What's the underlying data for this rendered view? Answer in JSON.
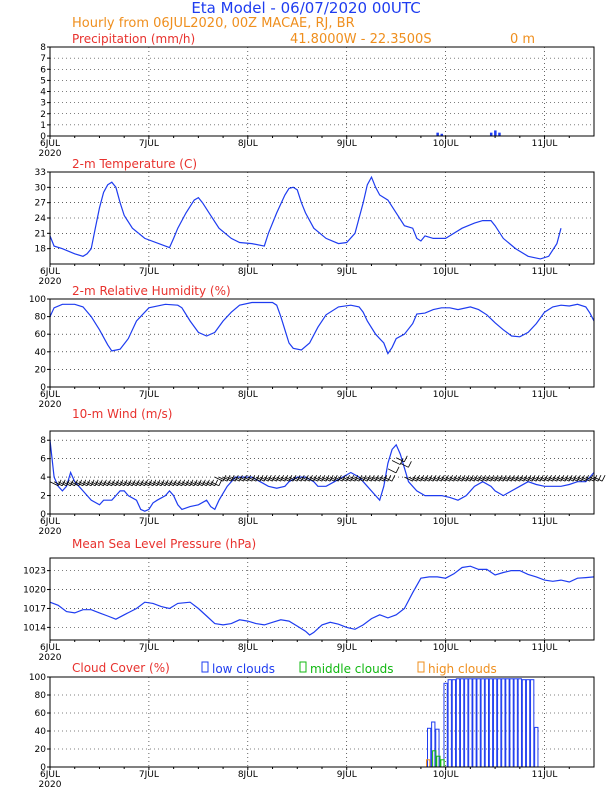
{
  "header": {
    "title": "Eta Model - 06/07/2020 00UTC",
    "subtitle": "Hourly from 06JUL2020, 00Z   MACAE, RJ, BR",
    "coords": "41.8000W - 22.3500S",
    "elevation": "0   m"
  },
  "x_axis": {
    "labels": [
      "6JUL",
      "7JUL",
      "8JUL",
      "9JUL",
      "10JUL",
      "11JUL"
    ],
    "year": "2020",
    "hours_total": 132
  },
  "colors": {
    "title": "#e8322e",
    "header": "#1e3cf0",
    "orange": "#ef8f1e",
    "line": "#1e3cf0",
    "low": "#1e3cf0",
    "middle": "#12b812",
    "high": "#ef8f1e"
  },
  "chart_data": [
    {
      "type": "bar",
      "title": "Precipitation (mm/h)",
      "ylim": [
        0,
        8
      ],
      "yticks": [
        "0",
        "1",
        "2",
        "3",
        "4",
        "5",
        "6",
        "7",
        "8"
      ],
      "bars": [
        [
          94,
          0.3
        ],
        [
          95,
          0.2
        ],
        [
          107,
          0.3
        ],
        [
          108,
          0.5
        ],
        [
          109,
          0.3
        ]
      ]
    },
    {
      "type": "line",
      "title": "2-m Temperature (C)",
      "ylim": [
        15,
        33
      ],
      "yticks": [
        "18",
        "21",
        "24",
        "27",
        "30",
        "33"
      ],
      "points": [
        [
          0,
          20.5
        ],
        [
          1,
          18.5
        ],
        [
          3,
          18
        ],
        [
          6,
          17
        ],
        [
          8,
          16.5
        ],
        [
          9,
          17
        ],
        [
          10,
          18
        ],
        [
          11,
          22
        ],
        [
          12,
          26
        ],
        [
          13,
          29
        ],
        [
          14,
          30.5
        ],
        [
          15,
          31
        ],
        [
          16,
          30
        ],
        [
          17,
          27
        ],
        [
          18,
          24.5
        ],
        [
          20,
          22
        ],
        [
          23,
          20
        ],
        [
          28,
          18.5
        ],
        [
          29,
          18.2
        ],
        [
          30,
          20
        ],
        [
          31,
          22
        ],
        [
          33,
          25
        ],
        [
          35,
          27.5
        ],
        [
          36,
          28
        ],
        [
          37,
          27
        ],
        [
          39,
          24.5
        ],
        [
          41,
          22
        ],
        [
          44,
          20
        ],
        [
          46,
          19.2
        ],
        [
          49,
          19
        ],
        [
          52,
          18.5
        ],
        [
          53,
          21
        ],
        [
          55,
          25
        ],
        [
          57,
          28.5
        ],
        [
          58,
          29.8
        ],
        [
          59,
          30
        ],
        [
          60,
          29.5
        ],
        [
          61,
          27
        ],
        [
          62,
          25
        ],
        [
          64,
          22
        ],
        [
          67,
          20
        ],
        [
          70,
          19
        ],
        [
          72,
          19.2
        ],
        [
          74,
          21
        ],
        [
          75,
          24
        ],
        [
          76,
          27
        ],
        [
          77,
          30.5
        ],
        [
          78,
          32
        ],
        [
          79,
          30
        ],
        [
          80,
          28.5
        ],
        [
          82,
          27.5
        ],
        [
          84,
          25
        ],
        [
          86,
          22.5
        ],
        [
          88,
          22
        ],
        [
          89,
          20
        ],
        [
          90,
          19.5
        ],
        [
          91,
          20.5
        ],
        [
          93,
          20
        ],
        [
          96,
          20
        ],
        [
          98,
          21
        ],
        [
          100,
          22
        ],
        [
          103,
          23
        ],
        [
          105,
          23.5
        ],
        [
          107,
          23.5
        ],
        [
          108,
          22.5
        ],
        [
          110,
          20
        ],
        [
          113,
          18
        ],
        [
          116,
          16.5
        ],
        [
          119,
          16
        ],
        [
          121,
          16.5
        ],
        [
          123,
          19
        ],
        [
          124,
          22
        ]
      ]
    },
    {
      "type": "line",
      "title": "2-m Relative Humidity (%)",
      "ylim": [
        0,
        100
      ],
      "yticks": [
        "0",
        "20",
        "40",
        "60",
        "80",
        "100"
      ],
      "points": [
        [
          0,
          80
        ],
        [
          1,
          90
        ],
        [
          3,
          94
        ],
        [
          6,
          94
        ],
        [
          8,
          91
        ],
        [
          10,
          80
        ],
        [
          12,
          65
        ],
        [
          14,
          48
        ],
        [
          15,
          41
        ],
        [
          17,
          43
        ],
        [
          19,
          55
        ],
        [
          21,
          75
        ],
        [
          24,
          90
        ],
        [
          28,
          94
        ],
        [
          31,
          93
        ],
        [
          32,
          90
        ],
        [
          34,
          75
        ],
        [
          36,
          62
        ],
        [
          38,
          58
        ],
        [
          40,
          62
        ],
        [
          42,
          75
        ],
        [
          44,
          85
        ],
        [
          46,
          93
        ],
        [
          49,
          96
        ],
        [
          54,
          96
        ],
        [
          55,
          93
        ],
        [
          56,
          80
        ],
        [
          57,
          65
        ],
        [
          58,
          50
        ],
        [
          59,
          44
        ],
        [
          61,
          42
        ],
        [
          63,
          50
        ],
        [
          65,
          68
        ],
        [
          67,
          82
        ],
        [
          70,
          91
        ],
        [
          73,
          93
        ],
        [
          75,
          91
        ],
        [
          76,
          85
        ],
        [
          77,
          75
        ],
        [
          79,
          60
        ],
        [
          81,
          50
        ],
        [
          82,
          38
        ],
        [
          83,
          45
        ],
        [
          84,
          55
        ],
        [
          86,
          60
        ],
        [
          88,
          72
        ],
        [
          89,
          83
        ],
        [
          91,
          84
        ],
        [
          93,
          88
        ],
        [
          95,
          90
        ],
        [
          97,
          90
        ],
        [
          99,
          88
        ],
        [
          102,
          91
        ],
        [
          104,
          88
        ],
        [
          106,
          82
        ],
        [
          108,
          73
        ],
        [
          110,
          65
        ],
        [
          112,
          58
        ],
        [
          114,
          57
        ],
        [
          116,
          62
        ],
        [
          118,
          72
        ],
        [
          120,
          85
        ],
        [
          122,
          91
        ],
        [
          124,
          93
        ],
        [
          126,
          92
        ],
        [
          128,
          94
        ],
        [
          130,
          91
        ],
        [
          131,
          84
        ],
        [
          132,
          75
        ]
      ]
    },
    {
      "type": "line",
      "title": "10-m Wind (m/s)",
      "ylim": [
        0,
        9
      ],
      "yticks": [
        "0",
        "2",
        "4",
        "6",
        "8"
      ],
      "points": [
        [
          0,
          8
        ],
        [
          1,
          4
        ],
        [
          2,
          3
        ],
        [
          3,
          2.5
        ],
        [
          4,
          3
        ],
        [
          5,
          4.5
        ],
        [
          6,
          3.5
        ],
        [
          8,
          2.5
        ],
        [
          10,
          1.5
        ],
        [
          12,
          1
        ],
        [
          13,
          1.5
        ],
        [
          14,
          1.5
        ],
        [
          15,
          1.5
        ],
        [
          16,
          2
        ],
        [
          17,
          2.5
        ],
        [
          18,
          2.5
        ],
        [
          19,
          2
        ],
        [
          21,
          1.5
        ],
        [
          22,
          0.5
        ],
        [
          23,
          0.3
        ],
        [
          24,
          0.5
        ],
        [
          25,
          1.2
        ],
        [
          26,
          1.5
        ],
        [
          28,
          2
        ],
        [
          29,
          2.5
        ],
        [
          30,
          2
        ],
        [
          31,
          1
        ],
        [
          32,
          0.5
        ],
        [
          34,
          0.8
        ],
        [
          36,
          1
        ],
        [
          38,
          1.5
        ],
        [
          39,
          0.8
        ],
        [
          40,
          0.5
        ],
        [
          41,
          1.5
        ],
        [
          43,
          3
        ],
        [
          45,
          4
        ],
        [
          47,
          4
        ],
        [
          49,
          4
        ],
        [
          51,
          3.5
        ],
        [
          53,
          3
        ],
        [
          55,
          2.8
        ],
        [
          57,
          3
        ],
        [
          58,
          3.5
        ],
        [
          60,
          4
        ],
        [
          62,
          4
        ],
        [
          64,
          3.5
        ],
        [
          65,
          3
        ],
        [
          67,
          3
        ],
        [
          69,
          3.5
        ],
        [
          71,
          4
        ],
        [
          73,
          4.5
        ],
        [
          75,
          4
        ],
        [
          77,
          3
        ],
        [
          79,
          2
        ],
        [
          80,
          1.5
        ],
        [
          81,
          3
        ],
        [
          82,
          5.5
        ],
        [
          83,
          7
        ],
        [
          84,
          7.5
        ],
        [
          85,
          6.5
        ],
        [
          86,
          5
        ],
        [
          87,
          3.5
        ],
        [
          89,
          2.5
        ],
        [
          91,
          2
        ],
        [
          93,
          2
        ],
        [
          95,
          2
        ],
        [
          97,
          1.8
        ],
        [
          99,
          1.5
        ],
        [
          101,
          2
        ],
        [
          103,
          3
        ],
        [
          105,
          3.5
        ],
        [
          107,
          3
        ],
        [
          108,
          2.5
        ],
        [
          110,
          2
        ],
        [
          112,
          2.5
        ],
        [
          114,
          3
        ],
        [
          116,
          3.5
        ],
        [
          118,
          3.2
        ],
        [
          120,
          3
        ],
        [
          122,
          3
        ],
        [
          124,
          3
        ],
        [
          126,
          3.2
        ],
        [
          128,
          3.5
        ],
        [
          130,
          3.5
        ],
        [
          132,
          4.5
        ]
      ]
    },
    {
      "type": "line",
      "title": "Mean Sea Level Pressure (hPa)",
      "ylim": [
        1012,
        1025
      ],
      "yticks": [
        "1014",
        "1017",
        "1020",
        "1023"
      ],
      "points": [
        [
          0,
          1018
        ],
        [
          2,
          1017.5
        ],
        [
          4,
          1016.5
        ],
        [
          6,
          1016.3
        ],
        [
          8,
          1016.8
        ],
        [
          10,
          1016.8
        ],
        [
          12,
          1016.3
        ],
        [
          14,
          1015.8
        ],
        [
          16,
          1015.3
        ],
        [
          18,
          1016
        ],
        [
          21,
          1017
        ],
        [
          23,
          1018
        ],
        [
          25,
          1017.8
        ],
        [
          27,
          1017.3
        ],
        [
          29,
          1017
        ],
        [
          31,
          1017.8
        ],
        [
          34,
          1018
        ],
        [
          36,
          1017
        ],
        [
          38,
          1015.8
        ],
        [
          40,
          1014.6
        ],
        [
          42,
          1014.4
        ],
        [
          44,
          1014.6
        ],
        [
          46,
          1015.2
        ],
        [
          48,
          1015
        ],
        [
          50,
          1014.6
        ],
        [
          52,
          1014.4
        ],
        [
          54,
          1014.8
        ],
        [
          56,
          1015.2
        ],
        [
          58,
          1015
        ],
        [
          60,
          1014.2
        ],
        [
          62,
          1013.4
        ],
        [
          63,
          1012.8
        ],
        [
          64,
          1013.2
        ],
        [
          66,
          1014.4
        ],
        [
          68,
          1014.8
        ],
        [
          70,
          1014.5
        ],
        [
          72,
          1014
        ],
        [
          74,
          1013.7
        ],
        [
          76,
          1014.4
        ],
        [
          78,
          1015.4
        ],
        [
          80,
          1016
        ],
        [
          82,
          1015.5
        ],
        [
          84,
          1016
        ],
        [
          86,
          1017
        ],
        [
          88,
          1019.5
        ],
        [
          90,
          1021.8
        ],
        [
          92,
          1022
        ],
        [
          94,
          1022
        ],
        [
          96,
          1021.8
        ],
        [
          98,
          1022.5
        ],
        [
          100,
          1023.5
        ],
        [
          102,
          1023.7
        ],
        [
          104,
          1023.2
        ],
        [
          106,
          1023.2
        ],
        [
          108,
          1022.3
        ],
        [
          110,
          1022.7
        ],
        [
          112,
          1023
        ],
        [
          114,
          1023
        ],
        [
          116,
          1022.4
        ],
        [
          118,
          1022
        ],
        [
          120,
          1021.5
        ],
        [
          122,
          1021.3
        ],
        [
          124,
          1021.5
        ],
        [
          126,
          1021.2
        ],
        [
          128,
          1021.8
        ],
        [
          130,
          1021.9
        ],
        [
          132,
          1022
        ]
      ]
    },
    {
      "type": "bar",
      "title": "Cloud Cover (%)",
      "ylim": [
        0,
        100
      ],
      "yticks": [
        "0",
        "20",
        "40",
        "60",
        "80",
        "100"
      ],
      "legend": [
        "low clouds",
        "middle clouds",
        "high clouds"
      ],
      "low": [
        [
          92,
          43
        ],
        [
          93,
          50
        ],
        [
          94,
          42
        ],
        [
          96,
          93
        ],
        [
          97,
          97
        ],
        [
          98,
          97
        ],
        [
          99,
          98
        ],
        [
          100,
          98
        ],
        [
          101,
          98
        ],
        [
          102,
          98
        ],
        [
          103,
          98
        ],
        [
          104,
          98
        ],
        [
          105,
          98
        ],
        [
          106,
          98
        ],
        [
          107,
          98
        ],
        [
          108,
          98
        ],
        [
          109,
          98
        ],
        [
          110,
          98
        ],
        [
          111,
          98
        ],
        [
          112,
          98
        ],
        [
          113,
          98
        ],
        [
          114,
          98
        ],
        [
          115,
          97
        ],
        [
          116,
          97
        ],
        [
          117,
          97
        ],
        [
          118,
          44
        ]
      ],
      "middle": [
        [
          93,
          18
        ],
        [
          94,
          12
        ],
        [
          95,
          8
        ]
      ],
      "high": [
        [
          92,
          8
        ]
      ]
    }
  ]
}
